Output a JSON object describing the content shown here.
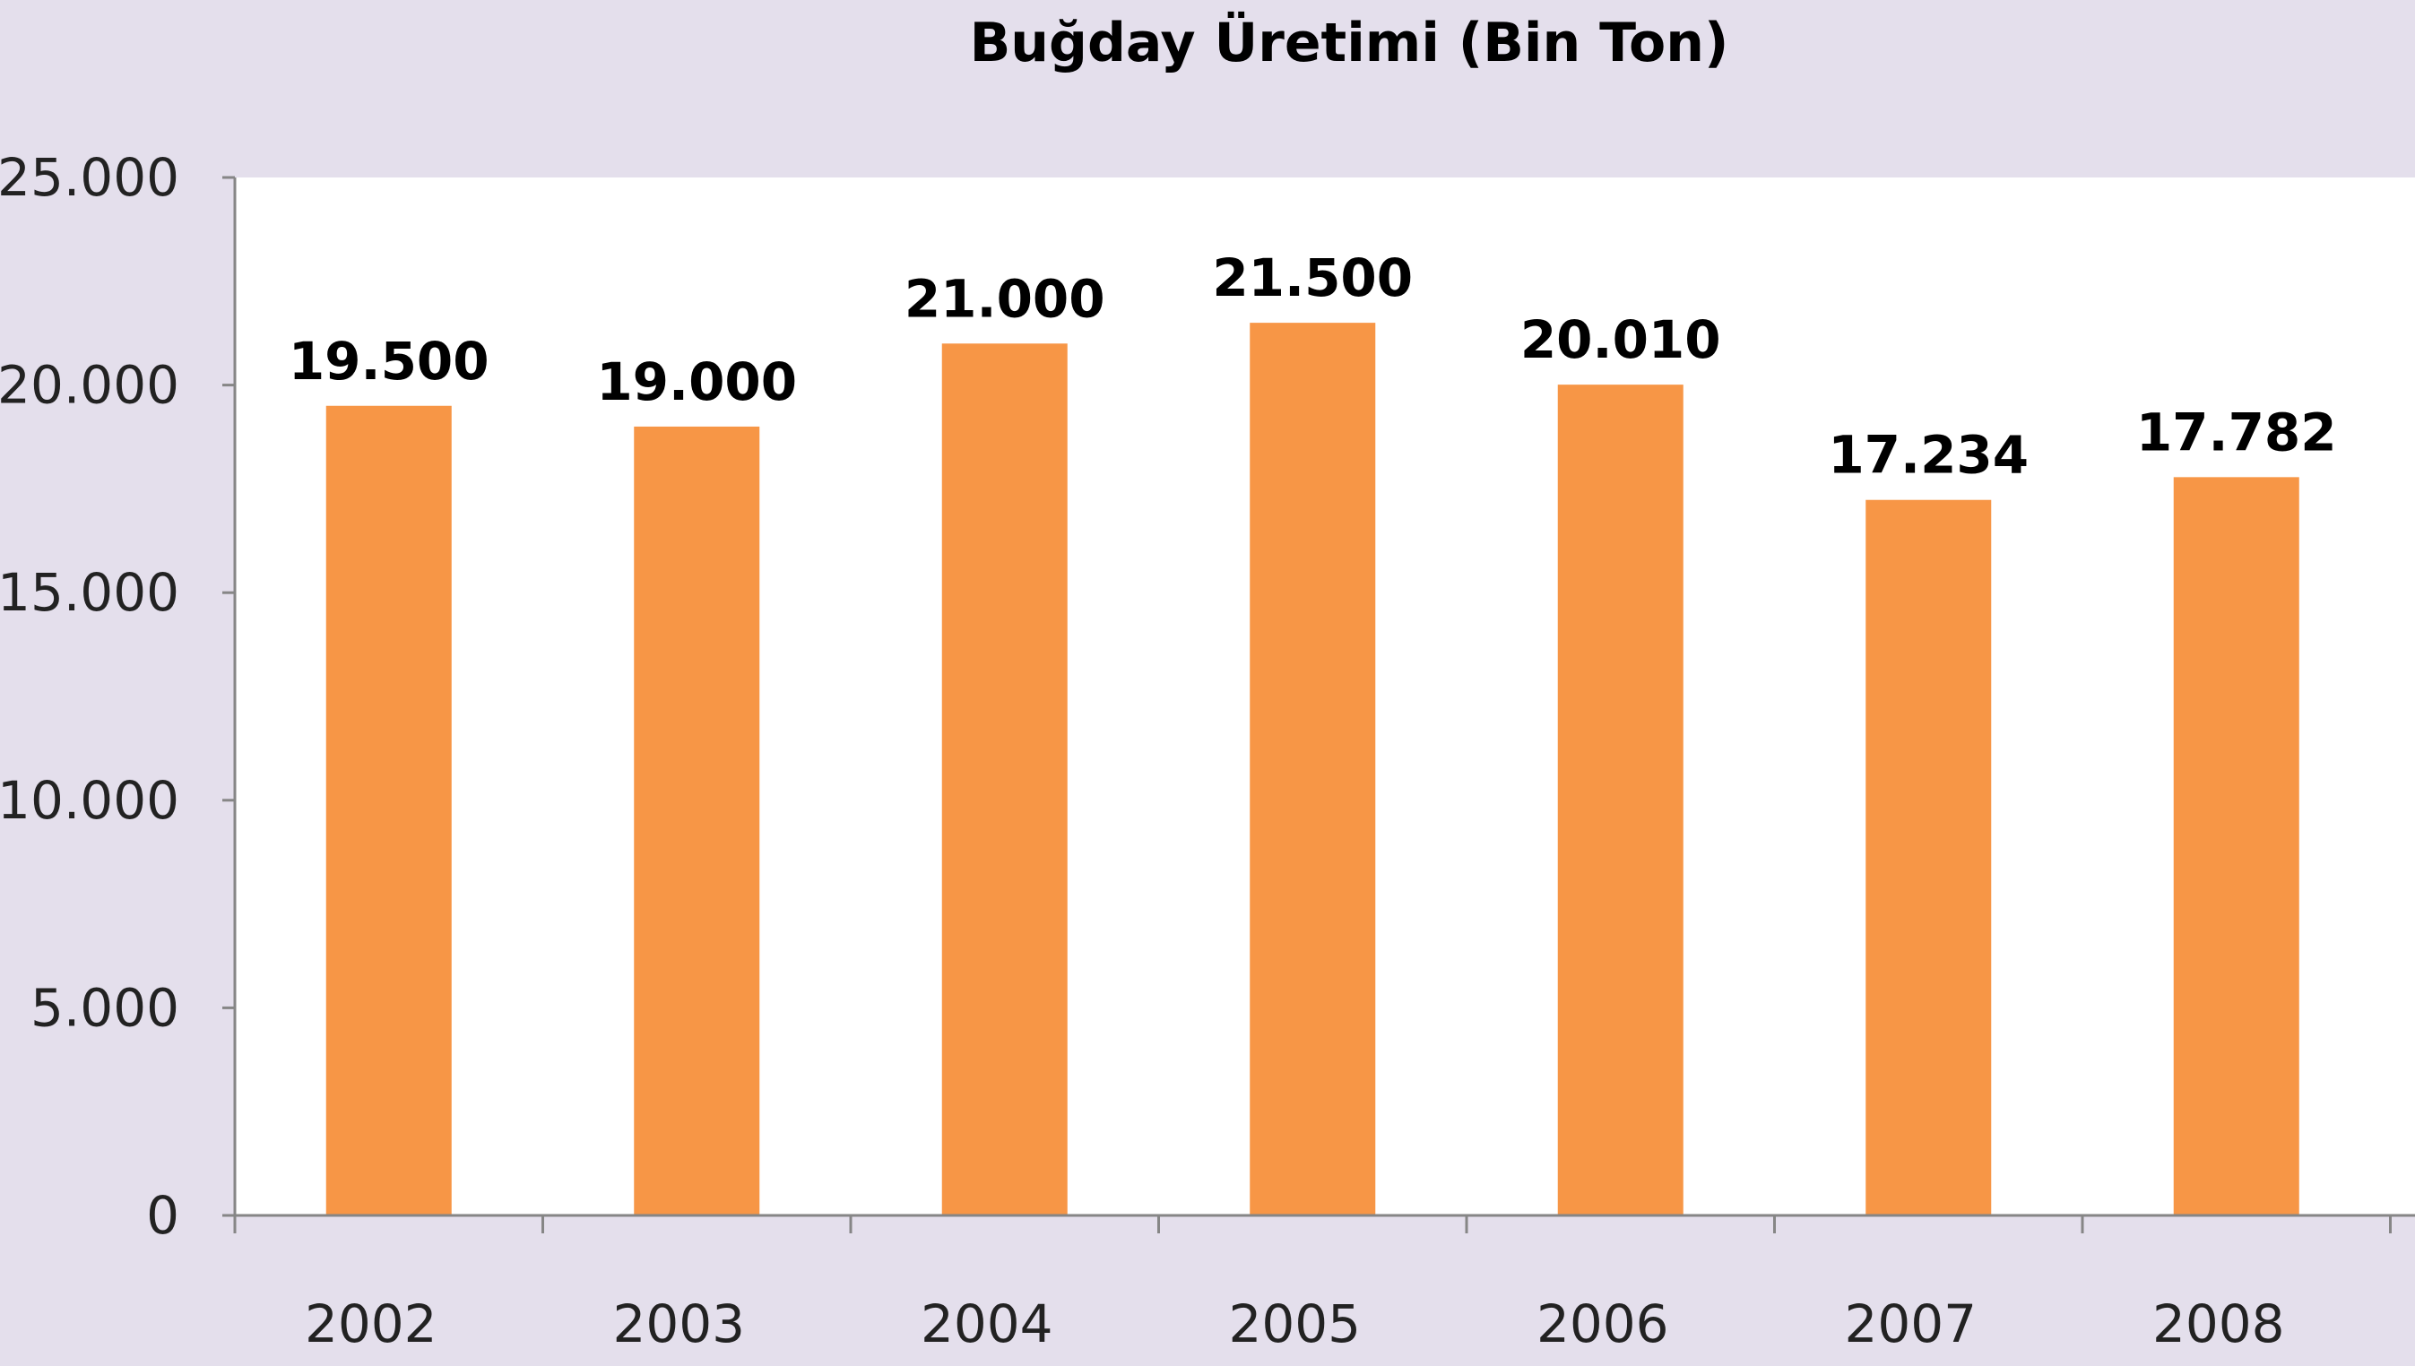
{
  "chart_data": {
    "type": "bar",
    "title": "Buğday Üretimi (Bin Ton)",
    "xlabel": "",
    "ylabel": "",
    "categories": [
      "2002",
      "2003",
      "2004",
      "2005",
      "2006",
      "2007",
      "2008"
    ],
    "values": [
      19500,
      19000,
      21000,
      21500,
      20010,
      17234,
      17782
    ],
    "value_labels": [
      "19.500",
      "19.000",
      "21.000",
      "21.500",
      "20.010",
      "17.234",
      "17.782"
    ],
    "ylim": [
      0,
      25000
    ],
    "yticks": [
      0,
      5000,
      10000,
      15000,
      20000,
      25000
    ],
    "ytick_labels": [
      "0",
      "5.000",
      "10.000",
      "15.000",
      "20.000",
      "25.000"
    ],
    "grid": false,
    "legend": "none",
    "colors": {
      "bar": "#f79646",
      "plot_background": "#ffffff",
      "chart_background": "#e4dfec",
      "axis": "#868686"
    }
  }
}
